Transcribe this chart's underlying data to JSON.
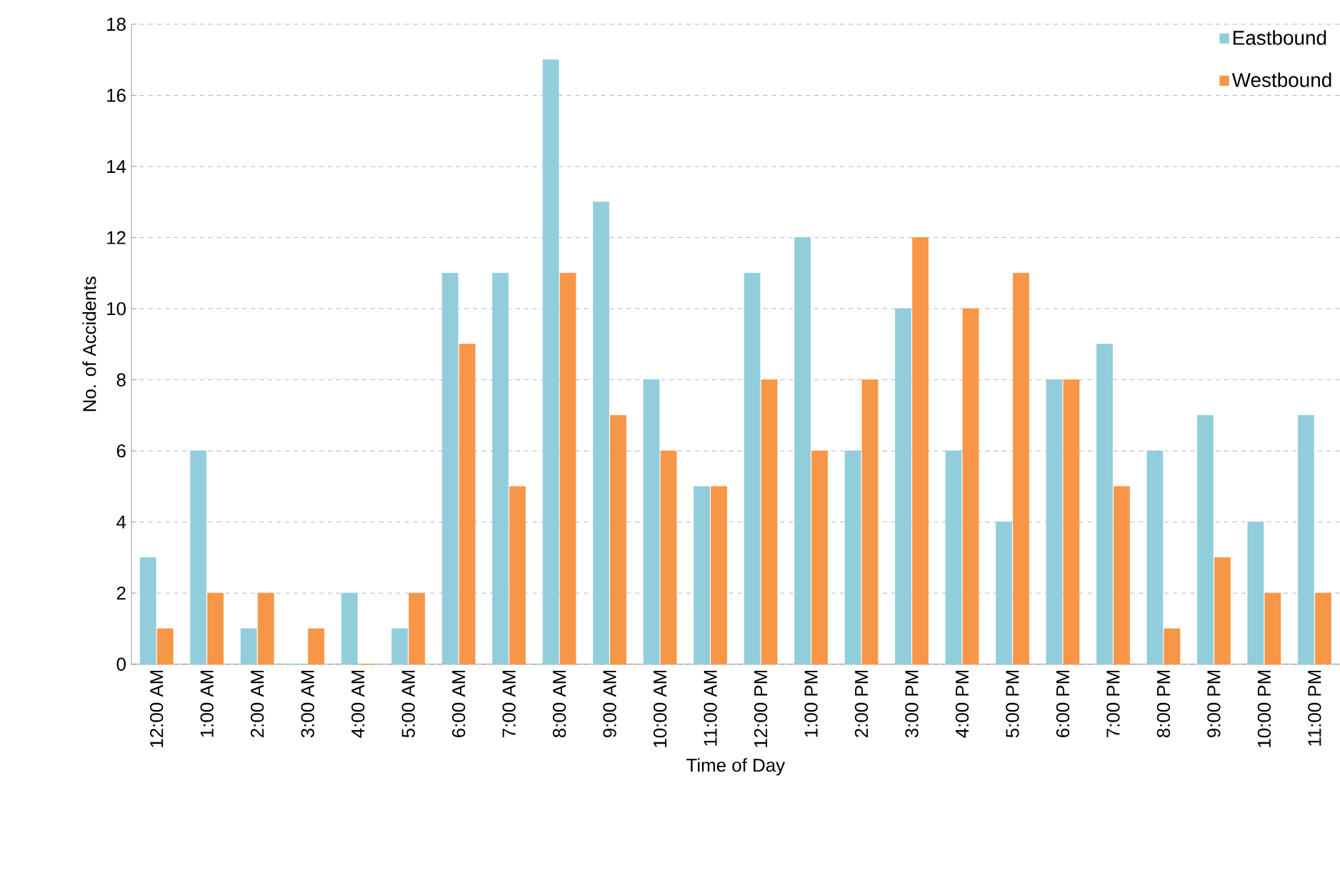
{
  "chart_data": {
    "type": "bar",
    "xlabel": "Time of Day",
    "ylabel": "No. of Accidents",
    "categories": [
      "12:00 AM",
      "1:00 AM",
      "2:00 AM",
      "3:00 AM",
      "4:00 AM",
      "5:00 AM",
      "6:00 AM",
      "7:00 AM",
      "8:00 AM",
      "9:00 AM",
      "10:00 AM",
      "11:00 AM",
      "12:00 PM",
      "1:00 PM",
      "2:00 PM",
      "3:00 PM",
      "4:00 PM",
      "5:00 PM",
      "6:00 PM",
      "7:00 PM",
      "8:00 PM",
      "9:00 PM",
      "10:00 PM",
      "11:00 PM"
    ],
    "series": [
      {
        "name": "Eastbound",
        "color": "#92cddc",
        "values": [
          3,
          6,
          1,
          0,
          2,
          1,
          11,
          11,
          17,
          13,
          8,
          5,
          11,
          12,
          6,
          10,
          6,
          4,
          8,
          9,
          6,
          7,
          4,
          7
        ]
      },
      {
        "name": "Westbound",
        "color": "#f79646",
        "values": [
          1,
          2,
          2,
          1,
          0,
          2,
          9,
          5,
          11,
          7,
          6,
          5,
          8,
          6,
          8,
          12,
          10,
          11,
          8,
          5,
          1,
          3,
          2,
          2
        ]
      }
    ],
    "ylim": [
      0,
      18
    ],
    "yticks": [
      0,
      2,
      4,
      6,
      8,
      10,
      12,
      14,
      16,
      18
    ],
    "grid": "y",
    "legend": "top right"
  }
}
